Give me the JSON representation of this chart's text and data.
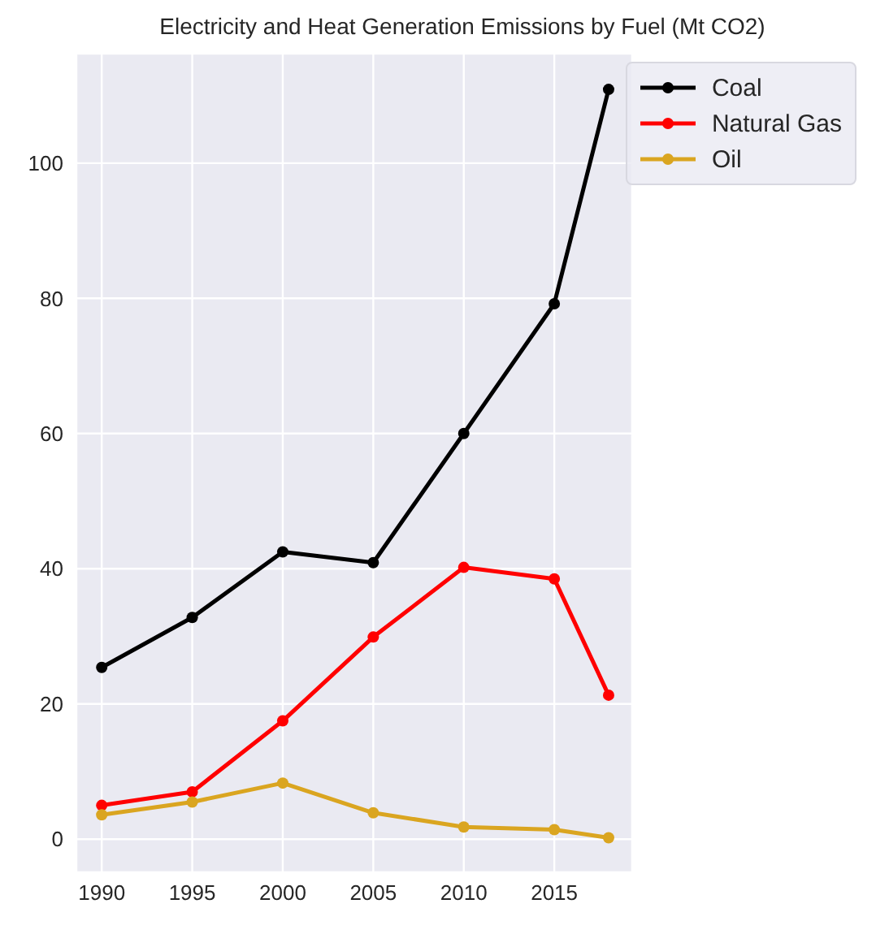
{
  "chart_data": {
    "type": "line",
    "title": "Electricity and Heat Generation Emissions by Fuel (Mt CO2)",
    "x": [
      1990,
      1995,
      2000,
      2005,
      2010,
      2015,
      2018
    ],
    "series": [
      {
        "name": "Coal",
        "color": "#000000",
        "values": [
          25.4,
          32.8,
          42.5,
          40.9,
          60.0,
          79.2,
          110.9
        ]
      },
      {
        "name": "Natural Gas",
        "color": "#ff0000",
        "values": [
          5.0,
          7.0,
          17.5,
          29.9,
          40.2,
          38.5,
          21.3
        ]
      },
      {
        "name": "Oil",
        "color": "#daa520",
        "values": [
          3.6,
          5.5,
          8.3,
          3.9,
          1.8,
          1.4,
          0.2
        ]
      }
    ],
    "xlim": [
      1988.6,
      2019.3
    ],
    "xticks": [
      1990,
      1995,
      2000,
      2005,
      2010,
      2015
    ],
    "ylim": [
      -4.9,
      116.2
    ],
    "yticks": [
      0,
      20,
      40,
      60,
      80,
      100
    ],
    "grid": true,
    "legend": "top right",
    "marker": "circle",
    "line_style": "solid"
  }
}
